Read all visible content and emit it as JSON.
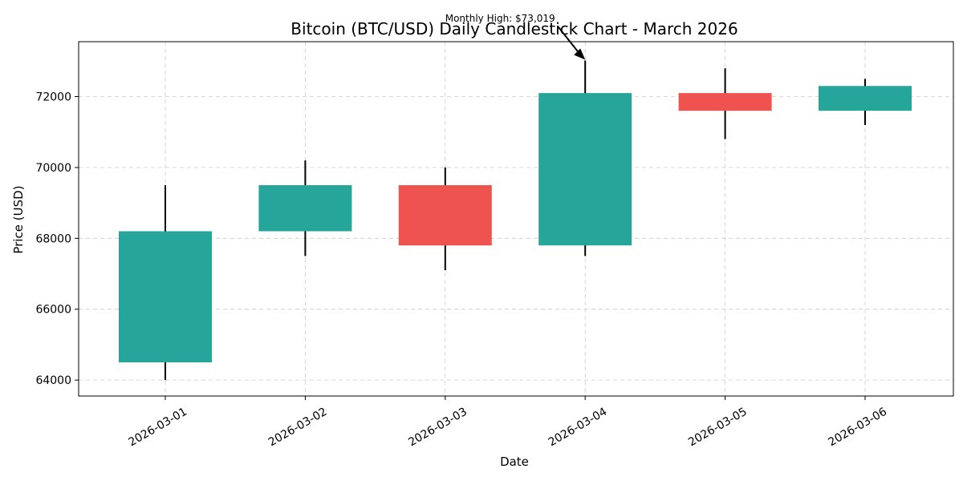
{
  "chart_data": {
    "type": "candlestick",
    "title": "Bitcoin (BTC/USD) Daily Candlestick Chart - March 2026",
    "xlabel": "Date",
    "ylabel": "Price (USD)",
    "ylim": [
      63550,
      73550
    ],
    "yticks": [
      64000,
      66000,
      68000,
      70000,
      72000
    ],
    "grid": true,
    "colors": {
      "up": "#26a69a",
      "down": "#ef5350"
    },
    "candles": [
      {
        "date": "2026-03-01",
        "open": 64500,
        "high": 69500,
        "low": 64000,
        "close": 68200
      },
      {
        "date": "2026-03-02",
        "open": 68200,
        "high": 70200,
        "low": 67500,
        "close": 69500
      },
      {
        "date": "2026-03-03",
        "open": 69500,
        "high": 70000,
        "low": 67100,
        "close": 67800
      },
      {
        "date": "2026-03-04",
        "open": 67800,
        "high": 73019,
        "low": 67500,
        "close": 72100
      },
      {
        "date": "2026-03-05",
        "open": 72100,
        "high": 72800,
        "low": 70800,
        "close": 71600
      },
      {
        "date": "2026-03-06",
        "open": 71600,
        "high": 72500,
        "low": 71200,
        "close": 72300
      }
    ],
    "annotations": [
      {
        "text": "Monthly High: $73,019",
        "date": "2026-03-04",
        "value": 73019
      }
    ]
  }
}
